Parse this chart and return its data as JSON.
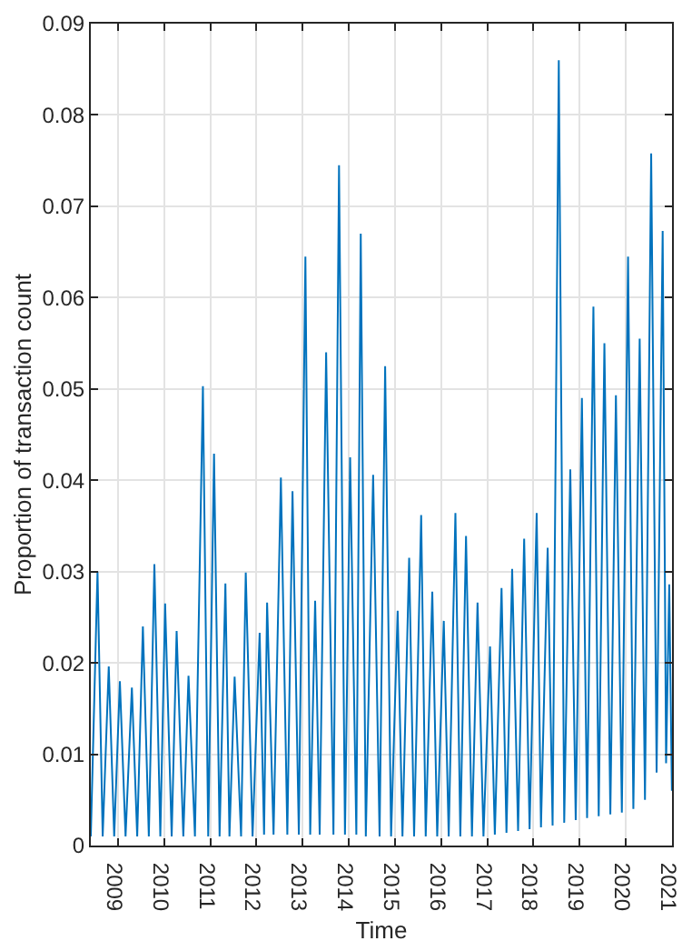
{
  "chart_data": {
    "type": "line",
    "xlabel": "Time",
    "ylabel": "Proportion of transaction count",
    "x": [
      "2008-05-30",
      "2008-07-22",
      "2008-09-01",
      "2008-10-19",
      "2008-12-01",
      "2009-01-15",
      "2009-03-01",
      "2009-04-20",
      "2009-06-01",
      "2009-07-16",
      "2009-09-01",
      "2009-10-15",
      "2009-12-01",
      "2010-01-08",
      "2010-03-01",
      "2010-04-09",
      "2010-06-01",
      "2010-07-12",
      "2010-09-01",
      "2010-11-03",
      "2010-12-15",
      "2011-01-30",
      "2011-03-15",
      "2011-04-30",
      "2011-06-01",
      "2011-07-12",
      "2011-09-01",
      "2011-10-08",
      "2011-12-01",
      "2012-01-26",
      "2012-03-01",
      "2012-03-25",
      "2012-05-15",
      "2012-07-12",
      "2012-09-01",
      "2012-10-12",
      "2012-12-01",
      "2013-01-22",
      "2013-03-01",
      "2013-04-09",
      "2013-05-15",
      "2013-07-05",
      "2013-09-01",
      "2013-10-15",
      "2013-12-01",
      "2014-01-11",
      "2014-03-01",
      "2014-04-05",
      "2014-05-15",
      "2014-07-12",
      "2014-09-01",
      "2014-10-15",
      "2014-12-01",
      "2015-01-22",
      "2015-03-01",
      "2015-04-23",
      "2015-06-01",
      "2015-07-27",
      "2015-09-01",
      "2015-10-23",
      "2015-12-01",
      "2016-01-22",
      "2016-03-01",
      "2016-04-23",
      "2016-06-01",
      "2016-07-16",
      "2016-09-01",
      "2016-10-15",
      "2016-12-01",
      "2017-01-22",
      "2017-03-01",
      "2017-04-23",
      "2017-06-01",
      "2017-07-16",
      "2017-09-01",
      "2017-10-19",
      "2017-12-01",
      "2018-01-26",
      "2018-03-01",
      "2018-04-23",
      "2018-06-01",
      "2018-07-20",
      "2018-09-01",
      "2018-10-19",
      "2018-12-01",
      "2019-01-19",
      "2019-03-01",
      "2019-04-20",
      "2019-06-01",
      "2019-07-16",
      "2019-09-01",
      "2019-10-15",
      "2019-12-01",
      "2020-01-19",
      "2020-03-01",
      "2020-04-20",
      "2020-06-01",
      "2020-07-20",
      "2020-09-01",
      "2020-10-19",
      "2020-11-15",
      "2020-12-10",
      "2020-12-31"
    ],
    "series": [
      {
        "color": "#0072bd",
        "values": [
          0.001,
          0.03,
          0.001,
          0.0196,
          0.001,
          0.018,
          0.001,
          0.0173,
          0.001,
          0.024,
          0.001,
          0.0308,
          0.001,
          0.0265,
          0.001,
          0.0235,
          0.001,
          0.0186,
          0.001,
          0.0503,
          0.001,
          0.0429,
          0.001,
          0.0287,
          0.001,
          0.0185,
          0.001,
          0.0299,
          0.001,
          0.0233,
          0.0012,
          0.0266,
          0.0012,
          0.0403,
          0.0012,
          0.0388,
          0.0012,
          0.0645,
          0.0012,
          0.0268,
          0.0012,
          0.054,
          0.0012,
          0.0745,
          0.0012,
          0.0425,
          0.0012,
          0.067,
          0.001,
          0.0406,
          0.001,
          0.0525,
          0.001,
          0.0257,
          0.001,
          0.0315,
          0.001,
          0.0362,
          0.001,
          0.0278,
          0.001,
          0.0246,
          0.001,
          0.0364,
          0.001,
          0.0339,
          0.001,
          0.0266,
          0.001,
          0.0218,
          0.0012,
          0.0282,
          0.0014,
          0.0303,
          0.0016,
          0.0336,
          0.0018,
          0.0364,
          0.002,
          0.0326,
          0.0022,
          0.086,
          0.0025,
          0.0412,
          0.0028,
          0.049,
          0.003,
          0.059,
          0.0032,
          0.055,
          0.0034,
          0.0493,
          0.0036,
          0.0645,
          0.004,
          0.0555,
          0.005,
          0.0758,
          0.008,
          0.0673,
          0.009,
          0.0286,
          0.006
        ]
      }
    ],
    "xlim": [
      "2008-05-30",
      "2021-01-01"
    ],
    "xticks": [
      "2009",
      "2010",
      "2011",
      "2012",
      "2013",
      "2014",
      "2015",
      "2016",
      "2017",
      "2018",
      "2019",
      "2020",
      "2021"
    ],
    "ylim": [
      0,
      0.09
    ],
    "yticks": [
      0,
      0.01,
      0.02,
      0.03,
      0.04,
      0.05,
      0.06,
      0.07,
      0.08,
      0.09
    ],
    "grid": true
  }
}
